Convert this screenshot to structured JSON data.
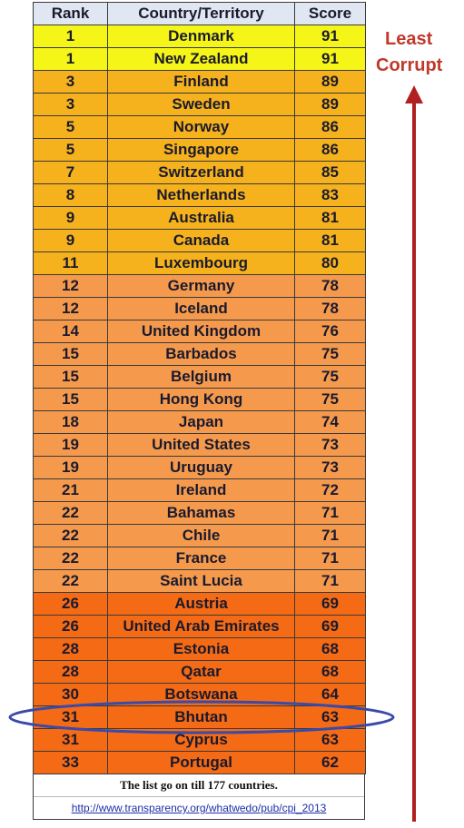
{
  "chart_data": {
    "type": "table",
    "columns": [
      "Rank",
      "Country/Territory",
      "Score"
    ],
    "rows": [
      {
        "rank": "1",
        "country": "Denmark",
        "score": "91"
      },
      {
        "rank": "1",
        "country": "New Zealand",
        "score": "91"
      },
      {
        "rank": "3",
        "country": "Finland",
        "score": "89"
      },
      {
        "rank": "3",
        "country": "Sweden",
        "score": "89"
      },
      {
        "rank": "5",
        "country": "Norway",
        "score": "86"
      },
      {
        "rank": "5",
        "country": "Singapore",
        "score": "86"
      },
      {
        "rank": "7",
        "country": "Switzerland",
        "score": "85"
      },
      {
        "rank": "8",
        "country": "Netherlands",
        "score": "83"
      },
      {
        "rank": "9",
        "country": "Australia",
        "score": "81"
      },
      {
        "rank": "9",
        "country": "Canada",
        "score": "81"
      },
      {
        "rank": "11",
        "country": "Luxembourg",
        "score": "80"
      },
      {
        "rank": "12",
        "country": "Germany",
        "score": "78"
      },
      {
        "rank": "12",
        "country": "Iceland",
        "score": "78"
      },
      {
        "rank": "14",
        "country": "United Kingdom",
        "score": "76"
      },
      {
        "rank": "15",
        "country": "Barbados",
        "score": "75"
      },
      {
        "rank": "15",
        "country": "Belgium",
        "score": "75"
      },
      {
        "rank": "15",
        "country": "Hong Kong",
        "score": "75"
      },
      {
        "rank": "18",
        "country": "Japan",
        "score": "74"
      },
      {
        "rank": "19",
        "country": "United States",
        "score": "73"
      },
      {
        "rank": "19",
        "country": "Uruguay",
        "score": "73"
      },
      {
        "rank": "21",
        "country": "Ireland",
        "score": "72"
      },
      {
        "rank": "22",
        "country": "Bahamas",
        "score": "71"
      },
      {
        "rank": "22",
        "country": "Chile",
        "score": "71"
      },
      {
        "rank": "22",
        "country": "France",
        "score": "71"
      },
      {
        "rank": "22",
        "country": "Saint Lucia",
        "score": "71"
      },
      {
        "rank": "26",
        "country": "Austria",
        "score": "69"
      },
      {
        "rank": "26",
        "country": "United Arab Emirates",
        "score": "69"
      },
      {
        "rank": "28",
        "country": "Estonia",
        "score": "68"
      },
      {
        "rank": "28",
        "country": "Qatar",
        "score": "68"
      },
      {
        "rank": "30",
        "country": "Botswana",
        "score": "64"
      },
      {
        "rank": "31",
        "country": "Bhutan",
        "score": "63"
      },
      {
        "rank": "31",
        "country": "Cyprus",
        "score": "63"
      },
      {
        "rank": "33",
        "country": "Portugal",
        "score": "62"
      }
    ],
    "highlighted_country": "Bhutan",
    "score_colors": [
      {
        "min_score": 90,
        "color": "#f5f518"
      },
      {
        "min_score": 80,
        "color": "#f5b21c"
      },
      {
        "min_score": 70,
        "color": "#f59a4c"
      },
      {
        "min_score": 0,
        "color": "#f56a14"
      }
    ],
    "annotation": "Least Corrupt",
    "annotation_color": "#c0392b",
    "highlight_color": "#3a4aa8"
  },
  "footer": {
    "note": "The list go on till 177 countries.",
    "link": "http://www.transparency.org/whatwedo/pub/cpi_2013"
  },
  "header_color": "#e0e6f2"
}
